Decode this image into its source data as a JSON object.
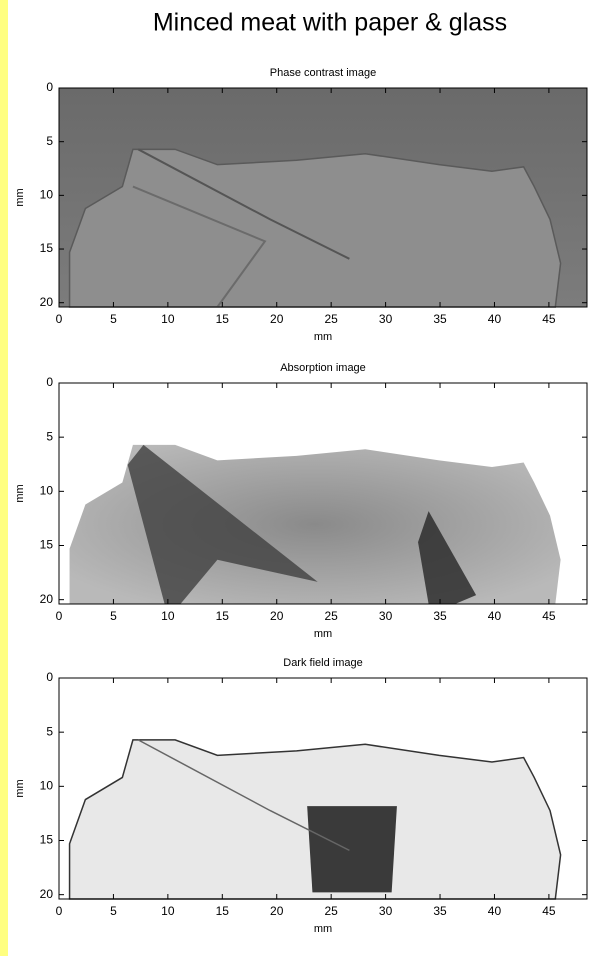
{
  "title": "Minced meat with paper & glass",
  "chart_data": [
    {
      "type": "image",
      "title": "Phase contrast image",
      "xlabel": "mm",
      "ylabel": "mm",
      "xlim": [
        0,
        48.5
      ],
      "ylim": [
        0,
        20.4
      ],
      "xticks": [
        0,
        5,
        10,
        15,
        20,
        25,
        30,
        35,
        40,
        45
      ],
      "yticks": [
        0,
        5,
        10,
        15,
        20
      ],
      "yreverse": true
    },
    {
      "type": "image",
      "title": "Absorption image",
      "xlabel": "mm",
      "ylabel": "mm",
      "xlim": [
        0,
        48.5
      ],
      "ylim": [
        0,
        20.4
      ],
      "xticks": [
        0,
        5,
        10,
        15,
        20,
        25,
        30,
        35,
        40,
        45
      ],
      "yticks": [
        0,
        5,
        10,
        15,
        20
      ],
      "yreverse": true
    },
    {
      "type": "image",
      "title": "Dark field image",
      "xlabel": "mm",
      "ylabel": "mm",
      "xlim": [
        0,
        48.5
      ],
      "ylim": [
        0,
        20.4
      ],
      "xticks": [
        0,
        5,
        10,
        15,
        20,
        25,
        30,
        35,
        40,
        45
      ],
      "yticks": [
        0,
        5,
        10,
        15,
        20
      ],
      "yreverse": true
    }
  ]
}
